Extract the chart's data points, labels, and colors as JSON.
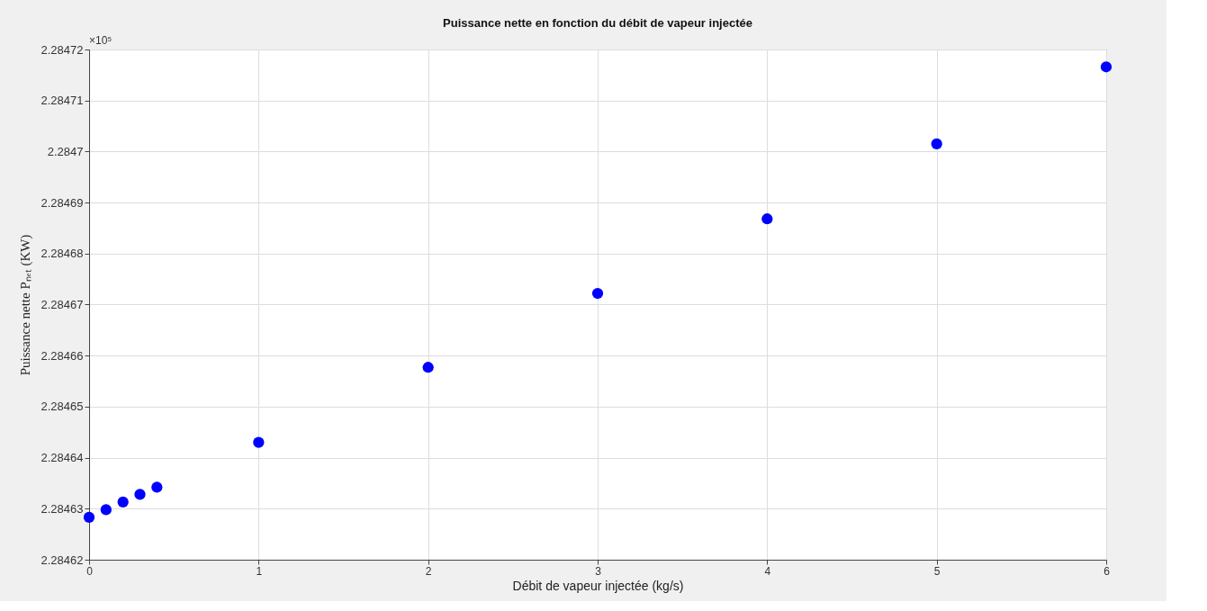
{
  "chart_data": {
    "type": "scatter",
    "title": "Puissance nette en fonction du débit de vapeur injectée",
    "xlabel": "Débit de vapeur injectée  (kg/s)",
    "ylabel": "Puissance nette Pₙₑₜ  (KW)",
    "annotations": [
      "×10⁵"
    ],
    "x": [
      0,
      0.1,
      0.2,
      0.3,
      0.4,
      1,
      2,
      3,
      4,
      5,
      6
    ],
    "series": [
      {
        "color": "#0000ff",
        "values": [
          2.2846283,
          2.2846298,
          2.2846313,
          2.2846328,
          2.2846342,
          2.284643,
          2.2846577,
          2.2846722,
          2.2846868,
          2.2847015,
          2.2847166
        ]
      }
    ],
    "xlim": [
      0,
      6
    ],
    "xticks": [
      0,
      1,
      2,
      3,
      4,
      5,
      6
    ],
    "ylim": [
      2.28462,
      2.28472
    ],
    "yticks": [
      2.28462,
      2.28463,
      2.28464,
      2.28465,
      2.28466,
      2.28467,
      2.28468,
      2.28469,
      2.2847,
      2.28471,
      2.28472
    ],
    "grid": true,
    "marker": "circle"
  }
}
